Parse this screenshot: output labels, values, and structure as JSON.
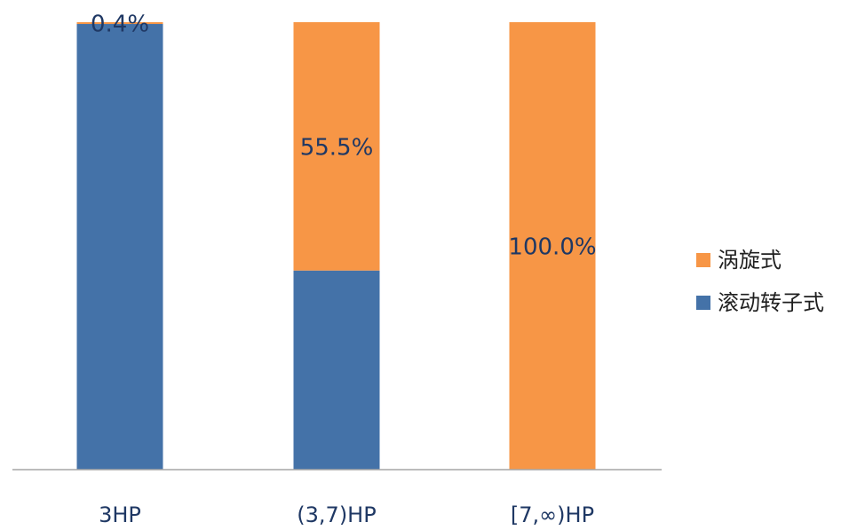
{
  "chart_data": {
    "type": "stacked_bar",
    "categories": [
      "3HP",
      "(3,7)HP",
      "[7,∞)HP"
    ],
    "series": [
      {
        "name": "滚动转子式",
        "color": "#4472a8",
        "values": [
          99.6,
          44.5,
          0
        ]
      },
      {
        "name": "涡旋式",
        "color": "#f79646",
        "values": [
          0.4,
          55.5,
          100
        ],
        "value_labels": [
          "0.4%",
          "55.5%",
          "100.0%"
        ]
      }
    ],
    "ylim": [
      0,
      100
    ],
    "legend": "right"
  }
}
